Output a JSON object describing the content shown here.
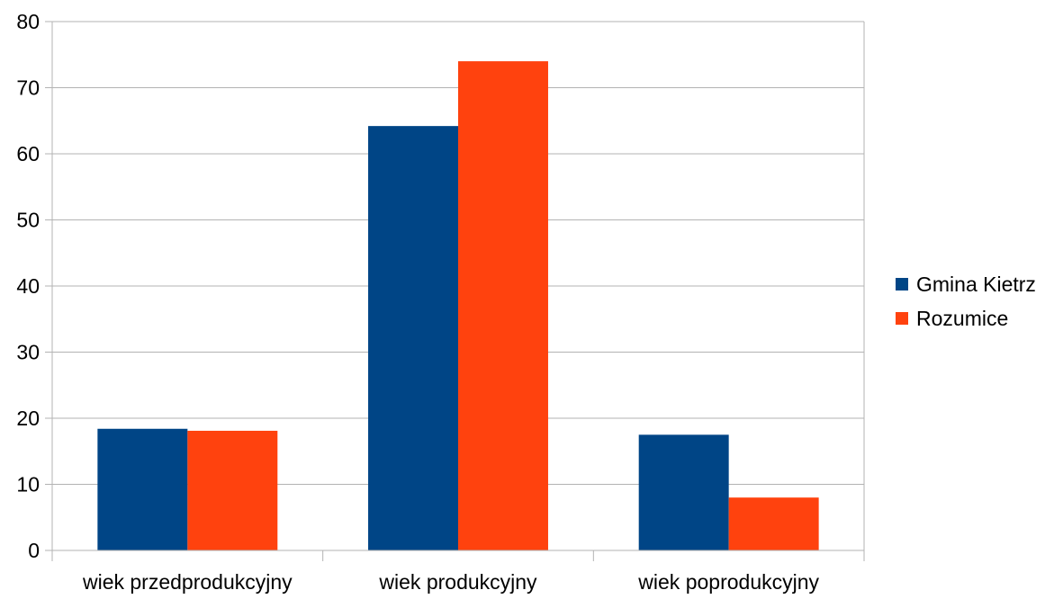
{
  "chart_data": {
    "type": "bar",
    "title": "",
    "xlabel": "",
    "ylabel": "",
    "categories": [
      "wiek przedprodukcyjny",
      "wiek produkcyjny",
      "wiek poprodukcyjny"
    ],
    "series": [
      {
        "name": "Gmina Kietrz",
        "values": [
          18.4,
          64.2,
          17.5
        ],
        "color": "#004586"
      },
      {
        "name": "Rozumice",
        "values": [
          18.1,
          74.0,
          8.0
        ],
        "color": "#ff420e"
      }
    ],
    "ylim": [
      0,
      80
    ],
    "yticks": [
      0,
      10,
      20,
      30,
      40,
      50,
      60,
      70,
      80
    ],
    "grid": true,
    "legend": "right",
    "gridColor": "#b3b3b3"
  }
}
